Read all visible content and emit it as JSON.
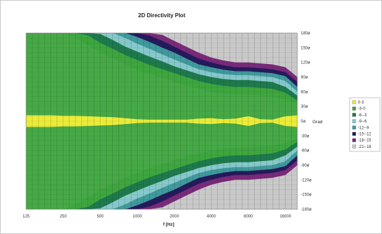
{
  "chart_data": {
    "type": "heatmap",
    "title": "2D Directivity Plot",
    "xlabel": "f [Hz]",
    "ylabel": "Grad",
    "x_scale": "log",
    "xlim": [
      125,
      20000
    ],
    "ylim": [
      -180,
      180
    ],
    "x_ticks": [
      "125",
      "250",
      "500",
      "1000",
      "2000",
      "4000",
      "8000",
      "16000"
    ],
    "y_ticks": [
      "180ø",
      "150ø",
      "120ø",
      "90ø",
      "60ø",
      "30ø",
      "0ø",
      "-30ø",
      "-60ø",
      "-90ø",
      "-120ø",
      "-150ø",
      "-180ø"
    ],
    "grid": true,
    "legend_position": "right",
    "levels": [
      {
        "label": "0-3",
        "color": "#ecec38"
      },
      {
        "label": "-3-0",
        "color": "#3ea63e"
      },
      {
        "label": "-6--3",
        "color": "#1d7a4c"
      },
      {
        "label": "-9--6",
        "color": "#86c9cc"
      },
      {
        "label": "-12--9",
        "color": "#3f9a9c"
      },
      {
        "label": "-15--12",
        "color": "#241a5c"
      },
      {
        "label": "-18--15",
        "color": "#7a2a7a"
      },
      {
        "label": "-21--18",
        "color": "#c9c9c9"
      }
    ],
    "background_color": "#46a946",
    "contours": {
      "freq": [
        125,
        160,
        200,
        250,
        315,
        400,
        500,
        630,
        800,
        1000,
        1250,
        1600,
        2000,
        2500,
        3150,
        4000,
        5000,
        6300,
        8000,
        10000,
        12500,
        16000,
        20000
      ],
      "angle_boundaries": [
        [
          180,
          180,
          180,
          180,
          180,
          180,
          180,
          180,
          180,
          180,
          180,
          180,
          180,
          180,
          180,
          180,
          180,
          180,
          180,
          180,
          180,
          180,
          180
        ],
        [
          180,
          180,
          180,
          180,
          170,
          155,
          140,
          128,
          115,
          105,
          96,
          88,
          80,
          72,
          66,
          60,
          56,
          54,
          54,
          52,
          50,
          44,
          36
        ],
        [
          180,
          180,
          180,
          180,
          180,
          175,
          160,
          148,
          135,
          125,
          115,
          106,
          98,
          90,
          82,
          76,
          72,
          70,
          70,
          68,
          66,
          58,
          42
        ],
        [
          180,
          180,
          180,
          180,
          180,
          180,
          178,
          166,
          152,
          142,
          132,
          122,
          112,
          104,
          96,
          90,
          86,
          84,
          84,
          82,
          80,
          70,
          52
        ],
        [
          180,
          180,
          180,
          180,
          180,
          180,
          180,
          180,
          170,
          158,
          148,
          136,
          126,
          116,
          106,
          100,
          96,
          94,
          94,
          92,
          90,
          82,
          60
        ],
        [
          180,
          180,
          180,
          180,
          180,
          180,
          180,
          180,
          180,
          172,
          162,
          150,
          140,
          128,
          116,
          110,
          105,
          102,
          102,
          100,
          98,
          92,
          70
        ],
        [
          180,
          180,
          180,
          180,
          180,
          180,
          180,
          180,
          180,
          180,
          175,
          164,
          152,
          140,
          128,
          120,
          114,
          110,
          110,
          108,
          106,
          100,
          80
        ],
        [
          180,
          180,
          180,
          180,
          180,
          180,
          180,
          180,
          180,
          180,
          180,
          176,
          164,
          152,
          140,
          130,
          124,
          120,
          120,
          118,
          116,
          110,
          90
        ]
      ],
      "yellow_band_half_width": [
        12,
        12,
        12,
        11,
        11,
        10,
        9,
        8,
        6,
        4,
        3,
        3,
        3,
        3,
        5,
        6,
        4,
        5,
        10,
        4,
        3,
        10,
        12
      ]
    }
  }
}
